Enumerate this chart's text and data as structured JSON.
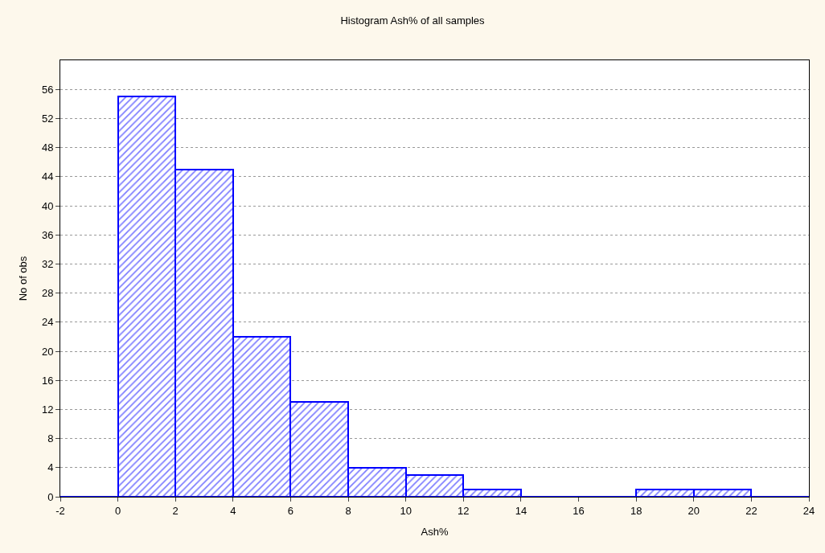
{
  "chart_data": {
    "type": "histogram",
    "title": "Histogram Ash% of all samples",
    "xlabel": "Ash%",
    "ylabel": "No of obs",
    "bins": [
      -2,
      0,
      2,
      4,
      6,
      8,
      10,
      12,
      14,
      16,
      18,
      20,
      22,
      24
    ],
    "values": [
      0,
      55,
      45,
      22,
      13,
      4,
      3,
      1,
      0,
      0,
      1,
      1,
      0
    ],
    "color": "#0000ff",
    "xlim": [
      -2,
      24
    ],
    "xticks": [
      -2,
      0,
      2,
      4,
      6,
      8,
      10,
      12,
      14,
      16,
      18,
      20,
      22,
      24
    ],
    "ylim": [
      0,
      60
    ],
    "yticks": [
      0,
      4,
      8,
      12,
      16,
      20,
      24,
      28,
      32,
      36,
      40,
      44,
      48,
      52,
      56
    ],
    "grid": "y"
  }
}
